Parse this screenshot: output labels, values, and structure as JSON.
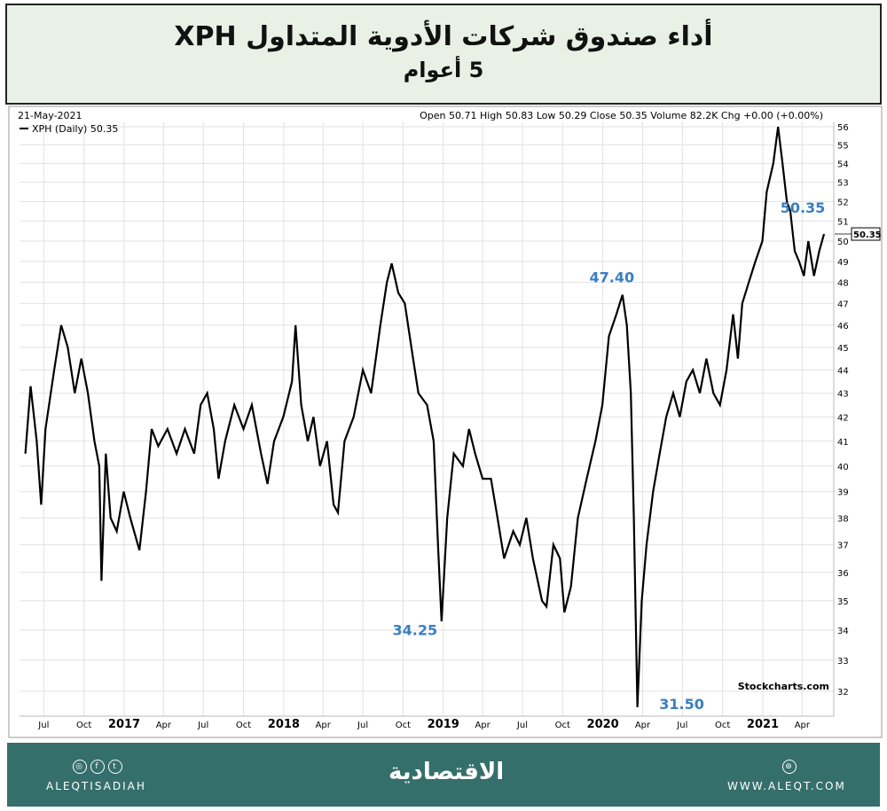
{
  "header": {
    "title": "أداء صندوق شركات الأدوية المتداول  XPH",
    "subtitle": "5 أعوام"
  },
  "chart_data": {
    "type": "line",
    "date_label": "21-May-2021",
    "quote": "Open 50.71 High 50.83 Low 50.29 Close 50.35 Volume 82.2K Chg +0.00 (+0.00%)",
    "legend": "XPH (Daily) 50.35",
    "last_value_label": "50.35",
    "watermark": "Stockcharts.com",
    "y_scale": "log",
    "ylim": [
      31.3,
      56.3
    ],
    "grid": true,
    "line_color": "#000000",
    "annotation_color": "#3a7ec0",
    "y_ticks": [
      32,
      33,
      34,
      35,
      36,
      37,
      38,
      39,
      40,
      41,
      42,
      43,
      44,
      45,
      46,
      47,
      48,
      49,
      50,
      51,
      52,
      53,
      54,
      55,
      56
    ],
    "x_ticks": [
      {
        "d": "2016-07-01",
        "l": "Jul"
      },
      {
        "d": "2016-10-01",
        "l": "Oct"
      },
      {
        "d": "2017-01-01",
        "l": "2017",
        "bold": true
      },
      {
        "d": "2017-04-01",
        "l": "Apr"
      },
      {
        "d": "2017-07-01",
        "l": "Jul"
      },
      {
        "d": "2017-10-01",
        "l": "Oct"
      },
      {
        "d": "2018-01-01",
        "l": "2018",
        "bold": true
      },
      {
        "d": "2018-04-01",
        "l": "Apr"
      },
      {
        "d": "2018-07-01",
        "l": "Jul"
      },
      {
        "d": "2018-10-01",
        "l": "Oct"
      },
      {
        "d": "2019-01-01",
        "l": "2019",
        "bold": true
      },
      {
        "d": "2019-04-01",
        "l": "Apr"
      },
      {
        "d": "2019-07-01",
        "l": "Jul"
      },
      {
        "d": "2019-10-01",
        "l": "Oct"
      },
      {
        "d": "2020-01-01",
        "l": "2020",
        "bold": true
      },
      {
        "d": "2020-04-01",
        "l": "Apr"
      },
      {
        "d": "2020-07-01",
        "l": "Jul"
      },
      {
        "d": "2020-10-01",
        "l": "Oct"
      },
      {
        "d": "2021-01-01",
        "l": "2021",
        "bold": true
      },
      {
        "d": "2021-04-01",
        "l": "Apr"
      }
    ],
    "annotations": [
      {
        "text": "47.40",
        "d": "2020-02-15",
        "v": 47.4
      },
      {
        "text": "34.25",
        "d": "2018-12-28",
        "v": 34.25
      },
      {
        "text": "31.50",
        "d": "2020-03-20",
        "v": 31.5
      },
      {
        "text": "50.35",
        "d": "2021-05-21",
        "v": 50.35
      }
    ],
    "series": [
      {
        "name": "XPH (Daily)",
        "points": [
          [
            "2016-05-20",
            40.5
          ],
          [
            "2016-06-01",
            43.3
          ],
          [
            "2016-06-15",
            41
          ],
          [
            "2016-06-25",
            38.5
          ],
          [
            "2016-07-05",
            41.5
          ],
          [
            "2016-07-25",
            44
          ],
          [
            "2016-08-10",
            46
          ],
          [
            "2016-08-25",
            45
          ],
          [
            "2016-09-10",
            43
          ],
          [
            "2016-09-25",
            44.5
          ],
          [
            "2016-10-10",
            43
          ],
          [
            "2016-10-25",
            41
          ],
          [
            "2016-11-05",
            40
          ],
          [
            "2016-11-10",
            35.7
          ],
          [
            "2016-11-20",
            40.5
          ],
          [
            "2016-12-01",
            38
          ],
          [
            "2016-12-15",
            37.5
          ],
          [
            "2016-12-31",
            39
          ],
          [
            "2017-01-15",
            38
          ],
          [
            "2017-02-05",
            36.8
          ],
          [
            "2017-02-20",
            39
          ],
          [
            "2017-03-05",
            41.5
          ],
          [
            "2017-03-20",
            40.8
          ],
          [
            "2017-04-10",
            41.5
          ],
          [
            "2017-05-01",
            40.5
          ],
          [
            "2017-05-20",
            41.5
          ],
          [
            "2017-06-10",
            40.5
          ],
          [
            "2017-06-25",
            42.5
          ],
          [
            "2017-07-10",
            43
          ],
          [
            "2017-07-25",
            41.5
          ],
          [
            "2017-08-05",
            39.5
          ],
          [
            "2017-08-20",
            41
          ],
          [
            "2017-09-10",
            42.5
          ],
          [
            "2017-10-01",
            41.5
          ],
          [
            "2017-10-20",
            42.5
          ],
          [
            "2017-11-10",
            40.5
          ],
          [
            "2017-11-25",
            39.3
          ],
          [
            "2017-12-10",
            41
          ],
          [
            "2017-12-31",
            42
          ],
          [
            "2018-01-20",
            43.5
          ],
          [
            "2018-01-28",
            46
          ],
          [
            "2018-02-10",
            42.5
          ],
          [
            "2018-02-25",
            41
          ],
          [
            "2018-03-10",
            42
          ],
          [
            "2018-03-25",
            40
          ],
          [
            "2018-04-10",
            41
          ],
          [
            "2018-04-25",
            38.5
          ],
          [
            "2018-05-05",
            38.2
          ],
          [
            "2018-05-20",
            41
          ],
          [
            "2018-06-10",
            42
          ],
          [
            "2018-07-01",
            44
          ],
          [
            "2018-07-20",
            43
          ],
          [
            "2018-08-10",
            46
          ],
          [
            "2018-08-25",
            48
          ],
          [
            "2018-09-05",
            48.9
          ],
          [
            "2018-09-20",
            47.5
          ],
          [
            "2018-10-05",
            47
          ],
          [
            "2018-10-20",
            45
          ],
          [
            "2018-11-05",
            43
          ],
          [
            "2018-11-25",
            42.5
          ],
          [
            "2018-12-10",
            41
          ],
          [
            "2018-12-20",
            37
          ],
          [
            "2018-12-28",
            34.3
          ],
          [
            "2019-01-10",
            38
          ],
          [
            "2019-01-25",
            40.5
          ],
          [
            "2019-02-15",
            40
          ],
          [
            "2019-03-01",
            41.5
          ],
          [
            "2019-03-15",
            40.5
          ],
          [
            "2019-04-01",
            39.5
          ],
          [
            "2019-04-20",
            39.5
          ],
          [
            "2019-05-05",
            38
          ],
          [
            "2019-05-20",
            36.5
          ],
          [
            "2019-06-10",
            37.5
          ],
          [
            "2019-06-25",
            37
          ],
          [
            "2019-07-10",
            38
          ],
          [
            "2019-07-25",
            36.5
          ],
          [
            "2019-08-15",
            35
          ],
          [
            "2019-08-25",
            34.8
          ],
          [
            "2019-09-10",
            37
          ],
          [
            "2019-09-25",
            36.5
          ],
          [
            "2019-10-05",
            34.6
          ],
          [
            "2019-10-20",
            35.5
          ],
          [
            "2019-11-05",
            38
          ],
          [
            "2019-11-25",
            39.5
          ],
          [
            "2019-12-15",
            41
          ],
          [
            "2019-12-31",
            42.5
          ],
          [
            "2020-01-15",
            45.5
          ],
          [
            "2020-02-01",
            46.5
          ],
          [
            "2020-02-15",
            47.4
          ],
          [
            "2020-02-25",
            46
          ],
          [
            "2020-03-05",
            43
          ],
          [
            "2020-03-12",
            38
          ],
          [
            "2020-03-20",
            31.5
          ],
          [
            "2020-03-30",
            35
          ],
          [
            "2020-04-10",
            37
          ],
          [
            "2020-04-25",
            39
          ],
          [
            "2020-05-10",
            40.5
          ],
          [
            "2020-05-25",
            42
          ],
          [
            "2020-06-10",
            43
          ],
          [
            "2020-06-25",
            42
          ],
          [
            "2020-07-10",
            43.5
          ],
          [
            "2020-07-25",
            44
          ],
          [
            "2020-08-10",
            43
          ],
          [
            "2020-08-25",
            44.5
          ],
          [
            "2020-09-10",
            43
          ],
          [
            "2020-09-25",
            42.5
          ],
          [
            "2020-10-10",
            44
          ],
          [
            "2020-10-25",
            46.5
          ],
          [
            "2020-11-05",
            44.5
          ],
          [
            "2020-11-15",
            47
          ],
          [
            "2020-11-30",
            48
          ],
          [
            "2020-12-15",
            49
          ],
          [
            "2020-12-31",
            50
          ],
          [
            "2021-01-10",
            52.5
          ],
          [
            "2021-01-25",
            54
          ],
          [
            "2021-02-05",
            56
          ],
          [
            "2021-02-15",
            54
          ],
          [
            "2021-02-25",
            52
          ],
          [
            "2021-03-05",
            51.5
          ],
          [
            "2021-03-15",
            49.5
          ],
          [
            "2021-03-25",
            49
          ],
          [
            "2021-04-05",
            48.3
          ],
          [
            "2021-04-15",
            50
          ],
          [
            "2021-04-28",
            48.3
          ],
          [
            "2021-05-10",
            49.5
          ],
          [
            "2021-05-21",
            50.35
          ]
        ]
      }
    ]
  },
  "footer": {
    "social_handle": "ALEQTISADIAH",
    "logo": "الاقتصادية",
    "website": "WWW.ALEQT.COM",
    "icons": [
      "instagram-icon",
      "facebook-icon",
      "twitter-icon",
      "web-icon"
    ]
  }
}
